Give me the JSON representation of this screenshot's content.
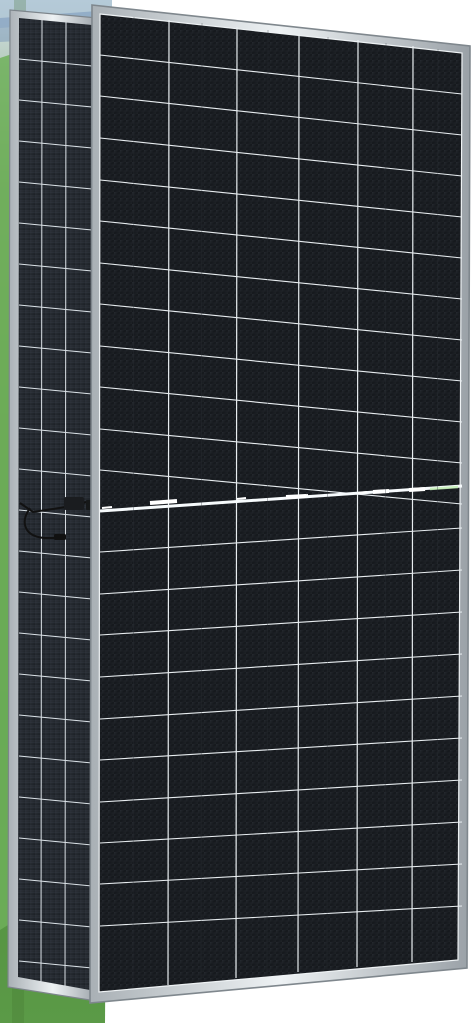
{
  "image": {
    "subject": "solar-panel-bifacial-half-cell",
    "colors": {
      "cell": "#16191d",
      "cell_alt": "#1b1f24",
      "grid": "#e8edf0",
      "frame": "#c9ced2",
      "frame_dark": "#8c9399",
      "background_grass": "#4f8f3f",
      "background_sky": "#dce7ee",
      "junction_box": "#111214"
    }
  }
}
